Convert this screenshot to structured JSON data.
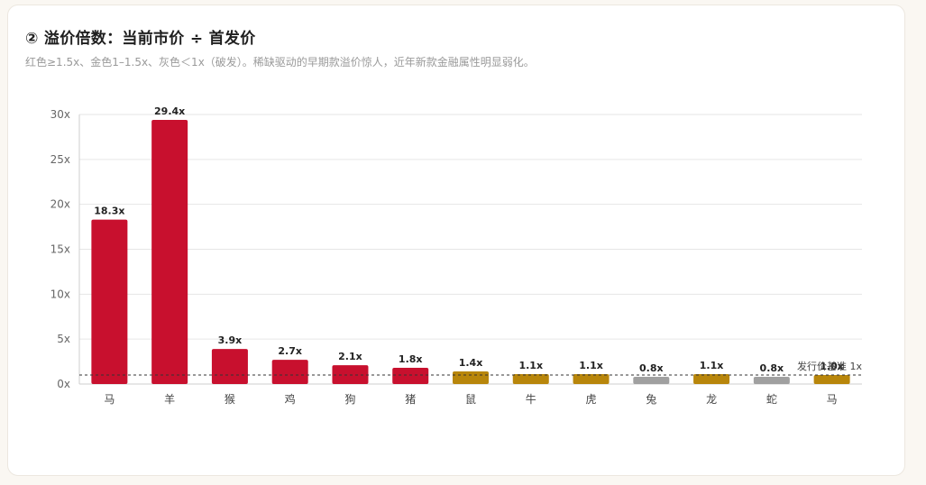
{
  "card": {
    "title": "② 溢价倍数：当前市价 ÷ 首发价",
    "subtitle": "红色≥1.5x、金色1–1.5x、灰色＜1x（破发）。稀缺驱动的早期款溢价惊人，近年新款金融属性明显弱化。"
  },
  "chart_data": {
    "type": "bar",
    "categories": [
      "马",
      "羊",
      "猴",
      "鸡",
      "狗",
      "猪",
      "鼠",
      "牛",
      "虎",
      "兔",
      "龙",
      "蛇",
      "马"
    ],
    "values": [
      18.3,
      29.4,
      3.9,
      2.7,
      2.1,
      1.8,
      1.4,
      1.1,
      1.1,
      0.8,
      1.1,
      0.8,
      1.0
    ],
    "value_labels": [
      "18.3x",
      "29.4x",
      "3.9x",
      "2.7x",
      "2.1x",
      "1.8x",
      "1.4x",
      "1.1x",
      "1.1x",
      "0.8x",
      "1.1x",
      "0.8x",
      "1.0x"
    ],
    "bar_colors": [
      "#c8102e",
      "#c8102e",
      "#c8102e",
      "#c8102e",
      "#c8102e",
      "#c8102e",
      "#b8860b",
      "#b8860b",
      "#b8860b",
      "#a0a0a0",
      "#b8860b",
      "#a0a0a0",
      "#b8860b"
    ],
    "y_ticks": [
      0,
      5,
      10,
      15,
      20,
      25,
      30
    ],
    "y_tick_labels": [
      "0x",
      "5x",
      "10x",
      "15x",
      "20x",
      "25x",
      "30x"
    ],
    "ylim": [
      0,
      30
    ],
    "grid": true,
    "reference_line": {
      "value": 1,
      "label": "发行价基准 1x"
    },
    "title": "",
    "xlabel": "",
    "ylabel": ""
  },
  "colors": {
    "red": "#c8102e",
    "gold": "#b8860b",
    "gray": "#a0a0a0",
    "grid": "#e6e6e6",
    "axis_text": "#666666",
    "label_text": "#222222"
  }
}
